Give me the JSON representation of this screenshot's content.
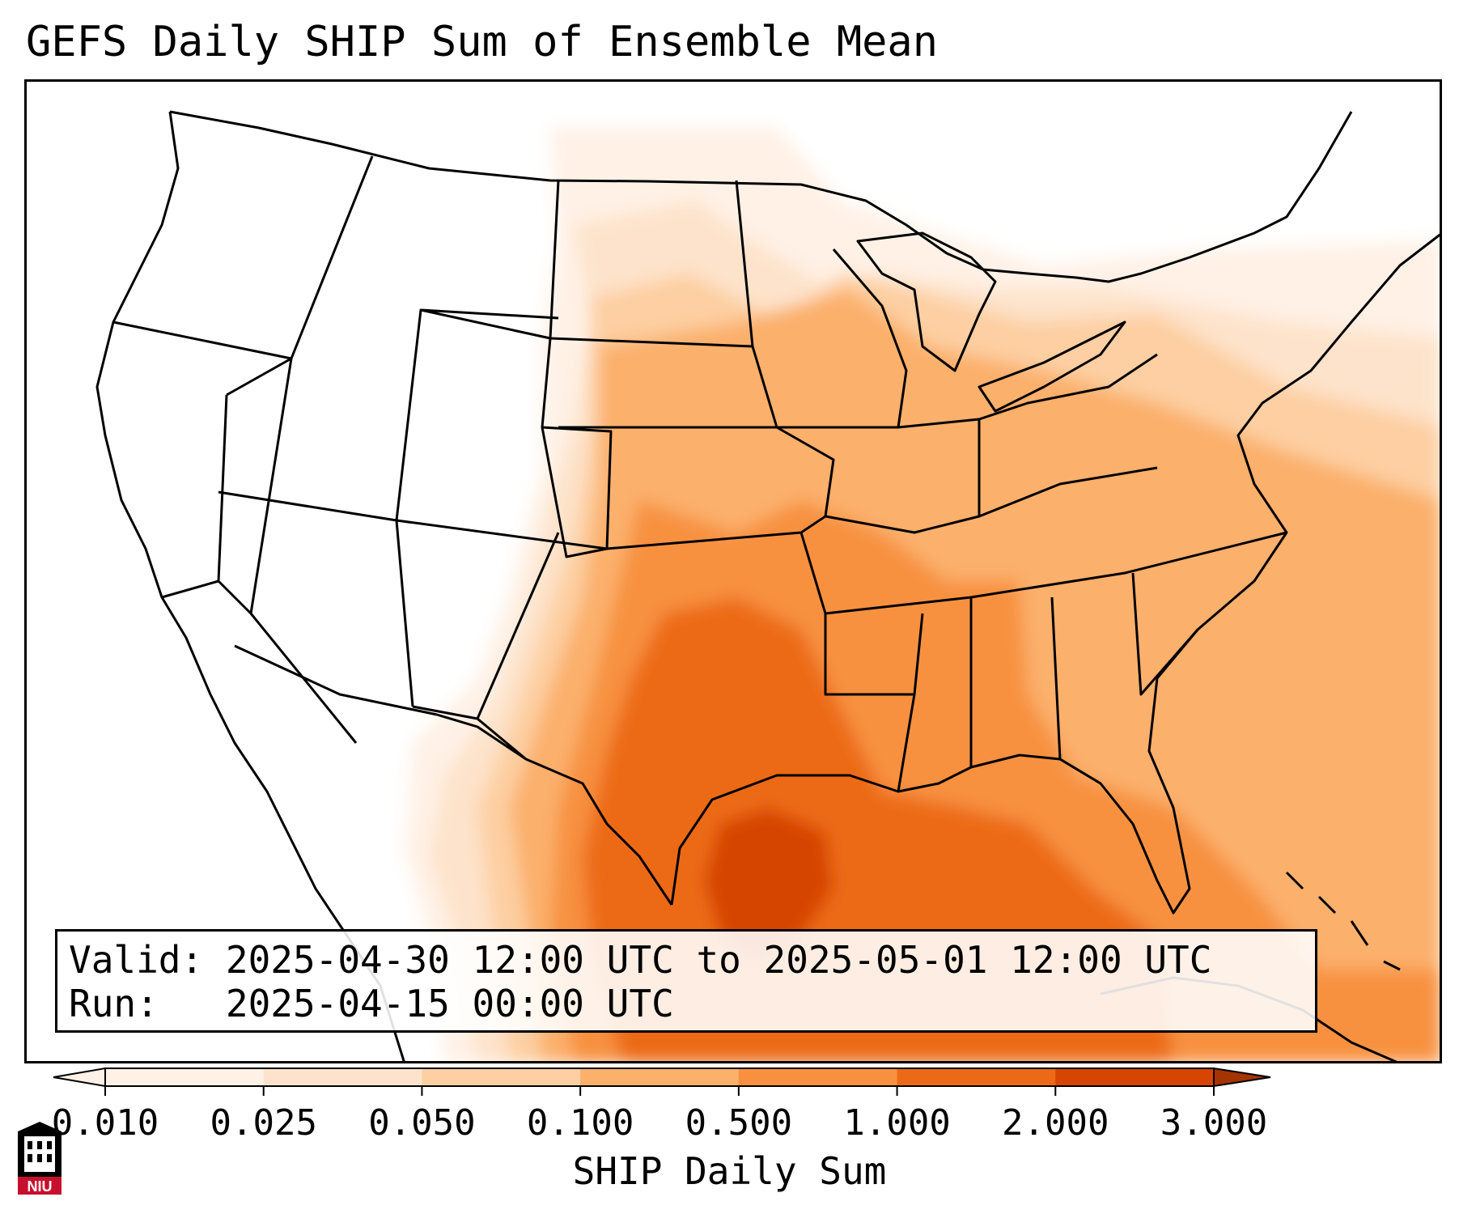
{
  "title": "GEFS Daily SHIP Sum of Ensemble Mean",
  "info": {
    "valid_label": "Valid:",
    "valid_value": "2025-04-30 12:00 UTC to 2025-05-01 12:00 UTC",
    "run_label": "Run:",
    "run_value": "2025-04-15 00:00 UTC"
  },
  "colorbar": {
    "label": "SHIP Daily Sum",
    "ticks": [
      "0.010",
      "0.025",
      "0.050",
      "0.100",
      "0.500",
      "1.000",
      "2.000",
      "3.000"
    ],
    "colors": [
      "#fff1e6",
      "#fde3cb",
      "#fdcfa2",
      "#fbb06c",
      "#f7913f",
      "#ec6a17",
      "#d64501",
      "#a53403"
    ],
    "extend": "both"
  },
  "map": {
    "projection": "Lambert conformal, CONUS",
    "field": "SHIP daily sum",
    "max_region": "Texas Gulf Coast / western Gulf of Mexico"
  },
  "logo": {
    "text": "NIU",
    "primary_color": "#c8102e"
  }
}
